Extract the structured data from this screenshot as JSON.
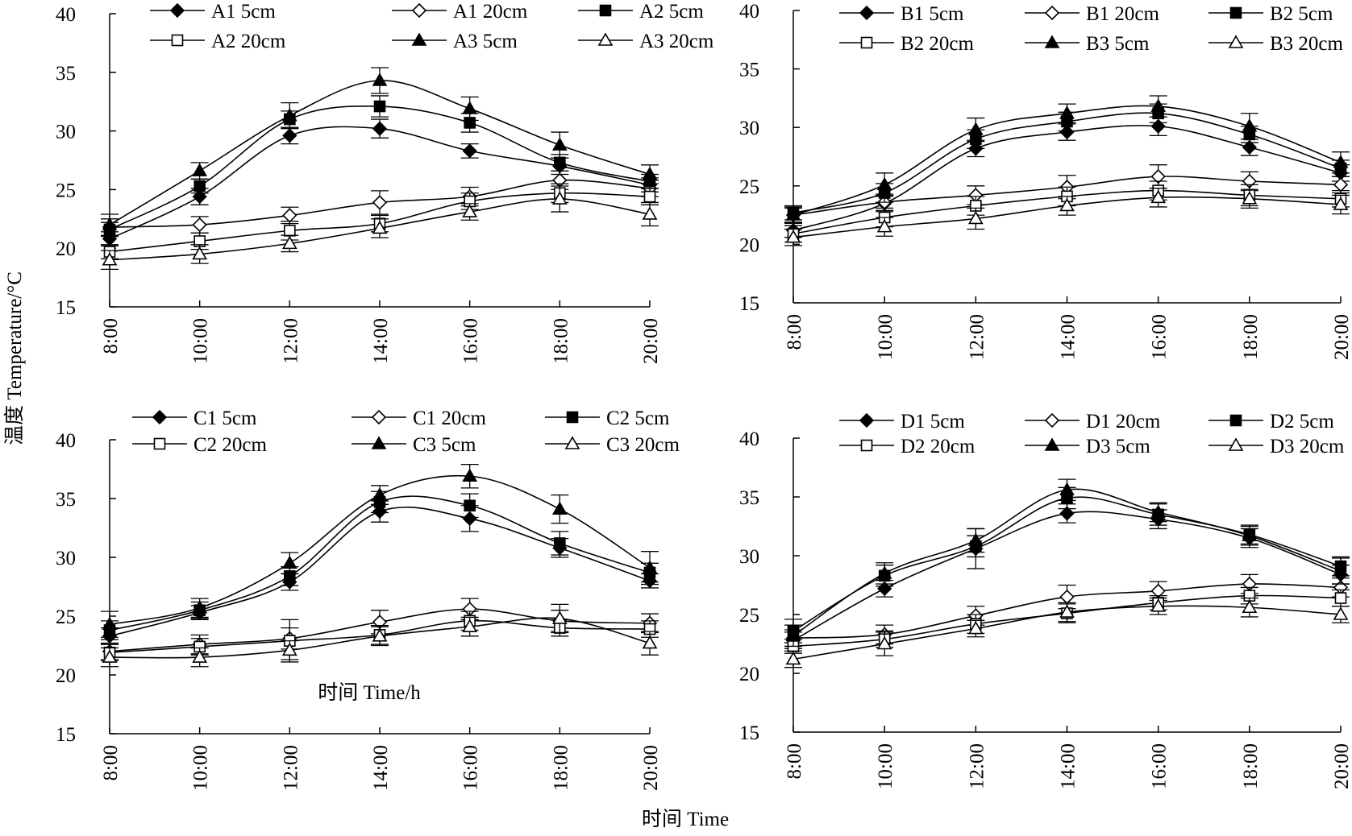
{
  "ylabel": "温度 Temperature/°C",
  "xlabel": "时间 Time",
  "chart_data": [
    {
      "panel": "A",
      "type": "line",
      "x": [
        "8:00",
        "10:00",
        "12:00",
        "14:00",
        "16:00",
        "18:00",
        "20:00"
      ],
      "ylim": [
        15,
        40
      ],
      "yticks": [
        15,
        20,
        25,
        30,
        35,
        40
      ],
      "inner_xlabel": "",
      "series": [
        {
          "name": "A1 5cm",
          "marker": "diamond",
          "fill": "filled",
          "values": [
            20.8,
            24.4,
            29.6,
            30.2,
            28.3,
            27.0,
            25.4
          ],
          "errors": [
            0.6,
            0.7,
            0.7,
            0.8,
            0.6,
            0.7,
            0.6
          ]
        },
        {
          "name": "A1 20cm",
          "marker": "diamond",
          "fill": "open",
          "values": [
            21.8,
            22.0,
            22.8,
            23.9,
            24.4,
            25.8,
            25.1
          ],
          "errors": [
            0.7,
            0.7,
            0.7,
            1.0,
            0.8,
            0.8,
            0.7
          ]
        },
        {
          "name": "A2 5cm",
          "marker": "square",
          "fill": "filled",
          "values": [
            21.6,
            25.3,
            31.0,
            32.1,
            30.7,
            27.3,
            25.7
          ],
          "errors": [
            0.6,
            0.6,
            0.7,
            0.9,
            0.8,
            0.7,
            0.6
          ]
        },
        {
          "name": "A2 20cm",
          "marker": "square",
          "fill": "open",
          "values": [
            19.7,
            20.6,
            21.5,
            22.1,
            24.0,
            24.7,
            24.4
          ],
          "errors": [
            0.6,
            0.7,
            0.8,
            0.7,
            0.7,
            0.8,
            0.7
          ]
        },
        {
          "name": "A3 5cm",
          "marker": "triangle",
          "fill": "filled",
          "values": [
            22.0,
            26.6,
            31.3,
            34.3,
            31.9,
            28.8,
            26.3
          ],
          "errors": [
            0.9,
            0.7,
            1.1,
            1.1,
            1.0,
            1.1,
            0.8
          ]
        },
        {
          "name": "A3 20cm",
          "marker": "triangle",
          "fill": "open",
          "values": [
            19.0,
            19.5,
            20.4,
            21.7,
            23.1,
            24.2,
            22.9
          ],
          "errors": [
            0.8,
            0.8,
            0.7,
            0.8,
            0.7,
            1.1,
            1.0
          ]
        }
      ]
    },
    {
      "panel": "B",
      "type": "line",
      "x": [
        "8:00",
        "10:00",
        "12:00",
        "14:00",
        "16:00",
        "18:00",
        "20:00"
      ],
      "ylim": [
        15,
        40
      ],
      "yticks": [
        15,
        20,
        25,
        30,
        35,
        40
      ],
      "inner_xlabel": "",
      "series": [
        {
          "name": "B1 5cm",
          "marker": "diamond",
          "fill": "filled",
          "values": [
            21.2,
            23.5,
            28.2,
            29.6,
            30.1,
            28.3,
            26.1
          ],
          "errors": [
            0.6,
            0.7,
            0.7,
            0.7,
            0.8,
            0.7,
            0.7
          ]
        },
        {
          "name": "B1 20cm",
          "marker": "diamond",
          "fill": "open",
          "values": [
            22.5,
            23.6,
            24.2,
            24.9,
            25.8,
            25.4,
            25.1
          ],
          "errors": [
            0.6,
            0.7,
            0.8,
            1.0,
            1.0,
            0.8,
            0.7
          ]
        },
        {
          "name": "B2 5cm",
          "marker": "square",
          "fill": "filled",
          "values": [
            22.7,
            24.4,
            29.0,
            30.5,
            31.2,
            29.4,
            26.5
          ],
          "errors": [
            0.6,
            0.8,
            0.8,
            0.8,
            0.8,
            0.7,
            0.7
          ]
        },
        {
          "name": "B2 20cm",
          "marker": "square",
          "fill": "open",
          "values": [
            20.9,
            22.3,
            23.3,
            24.1,
            24.6,
            24.2,
            23.9
          ],
          "errors": [
            0.7,
            0.8,
            0.8,
            0.8,
            0.8,
            0.9,
            0.7
          ]
        },
        {
          "name": "B3 5cm",
          "marker": "triangle",
          "fill": "filled",
          "values": [
            22.5,
            25.1,
            29.8,
            31.2,
            31.8,
            30.1,
            27.0
          ],
          "errors": [
            0.7,
            1.0,
            1.0,
            0.8,
            0.9,
            1.1,
            0.9
          ]
        },
        {
          "name": "B3 20cm",
          "marker": "triangle",
          "fill": "open",
          "values": [
            20.6,
            21.5,
            22.2,
            23.3,
            24.0,
            23.9,
            23.4
          ],
          "errors": [
            0.7,
            0.8,
            0.9,
            0.8,
            0.8,
            0.8,
            0.8
          ]
        }
      ]
    },
    {
      "panel": "C",
      "type": "line",
      "x": [
        "8:00",
        "10:00",
        "12:00",
        "14:00",
        "16:00",
        "18:00",
        "20:00"
      ],
      "ylim": [
        15,
        40
      ],
      "yticks": [
        15,
        20,
        25,
        30,
        35,
        40
      ],
      "inner_xlabel": "时间 Time/h",
      "series": [
        {
          "name": "C1 5cm",
          "marker": "diamond",
          "fill": "filled",
          "values": [
            23.3,
            25.3,
            27.9,
            33.9,
            33.3,
            30.8,
            28.0
          ],
          "errors": [
            0.7,
            0.6,
            0.7,
            0.9,
            1.1,
            0.8,
            0.6
          ]
        },
        {
          "name": "C1 20cm",
          "marker": "diamond",
          "fill": "open",
          "values": [
            22.0,
            22.6,
            23.1,
            24.5,
            25.6,
            24.6,
            24.4
          ],
          "errors": [
            0.7,
            0.8,
            0.9,
            1.0,
            0.9,
            0.9,
            0.8
          ]
        },
        {
          "name": "C2 5cm",
          "marker": "square",
          "fill": "filled",
          "values": [
            23.8,
            25.5,
            28.4,
            34.7,
            34.4,
            31.2,
            28.7
          ],
          "errors": [
            0.8,
            0.7,
            0.8,
            0.9,
            1.0,
            1.0,
            0.8
          ]
        },
        {
          "name": "C2 20cm",
          "marker": "square",
          "fill": "open",
          "values": [
            21.9,
            22.4,
            22.9,
            23.4,
            24.6,
            24.0,
            23.9
          ],
          "errors": [
            0.7,
            0.7,
            1.8,
            0.8,
            0.8,
            0.7,
            0.7
          ]
        },
        {
          "name": "C3 5cm",
          "marker": "triangle",
          "fill": "filled",
          "values": [
            24.3,
            25.7,
            29.5,
            35.3,
            36.9,
            34.1,
            29.1
          ],
          "errors": [
            1.1,
            0.8,
            0.9,
            0.8,
            1.0,
            1.2,
            1.4
          ]
        },
        {
          "name": "C3 20cm",
          "marker": "triangle",
          "fill": "open",
          "values": [
            21.5,
            21.5,
            22.1,
            23.3,
            24.1,
            24.8,
            22.7
          ],
          "errors": [
            0.8,
            0.8,
            0.8,
            0.8,
            0.8,
            1.2,
            1.0
          ]
        }
      ]
    },
    {
      "panel": "D",
      "type": "line",
      "x": [
        "8:00",
        "10:00",
        "12:00",
        "14:00",
        "16:00",
        "18:00",
        "20:00"
      ],
      "ylim": [
        15,
        40
      ],
      "yticks": [
        15,
        20,
        25,
        30,
        35,
        40
      ],
      "inner_xlabel": "",
      "series": [
        {
          "name": "D1 5cm",
          "marker": "diamond",
          "fill": "filled",
          "values": [
            22.8,
            27.2,
            30.6,
            33.6,
            33.1,
            31.5,
            28.4
          ],
          "errors": [
            0.7,
            0.7,
            1.7,
            0.8,
            0.8,
            0.8,
            0.8
          ]
        },
        {
          "name": "D1 20cm",
          "marker": "diamond",
          "fill": "open",
          "values": [
            23.0,
            23.3,
            24.9,
            26.5,
            27.0,
            27.6,
            27.3
          ],
          "errors": [
            0.7,
            0.8,
            0.8,
            1.0,
            0.8,
            0.8,
            0.8
          ]
        },
        {
          "name": "D2 5cm",
          "marker": "square",
          "fill": "filled",
          "values": [
            23.6,
            28.3,
            30.8,
            34.9,
            33.5,
            31.8,
            29.1
          ],
          "errors": [
            1.0,
            0.9,
            0.9,
            0.9,
            0.9,
            0.8,
            0.8
          ]
        },
        {
          "name": "D2 20cm",
          "marker": "square",
          "fill": "open",
          "values": [
            22.3,
            22.9,
            24.2,
            25.1,
            26.0,
            26.6,
            26.4
          ],
          "errors": [
            0.6,
            0.7,
            0.8,
            0.8,
            0.6,
            0.7,
            0.7
          ]
        },
        {
          "name": "D3 5cm",
          "marker": "triangle",
          "fill": "filled",
          "values": [
            23.2,
            28.5,
            31.3,
            35.6,
            33.7,
            31.7,
            28.7
          ],
          "errors": [
            0.9,
            0.9,
            1.0,
            0.9,
            0.8,
            0.8,
            1.1
          ]
        },
        {
          "name": "D3 20cm",
          "marker": "triangle",
          "fill": "open",
          "values": [
            21.2,
            22.5,
            23.8,
            25.2,
            25.7,
            25.6,
            25.0
          ],
          "errors": [
            0.7,
            1.0,
            0.7,
            0.8,
            0.7,
            0.8,
            0.7
          ]
        }
      ]
    }
  ]
}
